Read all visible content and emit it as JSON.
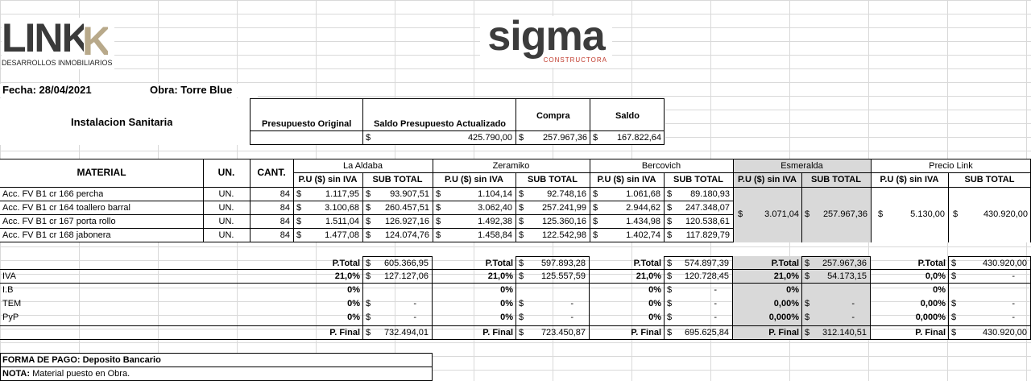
{
  "logos": {
    "link_main": "LINK",
    "link_sub": "DESARROLLOS INMOBILIARIOS",
    "sigma_main": "sigma",
    "sigma_sub": "CONSTRUCTORA"
  },
  "header": {
    "fecha": "Fecha: 28/04/2021",
    "obra": "Obra: Torre Blue"
  },
  "summary": {
    "title": "Instalacion Sanitaria",
    "presupuesto_original_label": "Presupuesto Original",
    "saldo_actualizado_label": "Saldo Presupuesto Actualizado",
    "compra_label": "Compra",
    "saldo_label": "Saldo",
    "currency": "$",
    "saldo_actualizado_value": "425.790,00",
    "compra_value": "257.967,36",
    "saldo_value": "167.822,64"
  },
  "table": {
    "material_label": "MATERIAL",
    "un_label": "UN.",
    "cant_label": "CANT.",
    "pu_label": "P.U ($) sin IVA",
    "sub_label": "SUB TOTAL",
    "suppliers": [
      "La Aldaba",
      "Zeramiko",
      "Bercovich",
      "Esmeralda",
      "Precio Link"
    ],
    "rows": [
      {
        "material": "Acc. FV B1 cr 166 percha",
        "un": "UN.",
        "cant": "84",
        "v": [
          "1.117,95",
          "93.907,51",
          "1.104,14",
          "92.748,16",
          "1.061,68",
          "89.180,93"
        ]
      },
      {
        "material": "Acc. FV B1 cr 164 toallero barral",
        "un": "UN.",
        "cant": "84",
        "v": [
          "3.100,68",
          "260.457,51",
          "3.062,40",
          "257.241,99",
          "2.944,62",
          "247.348,07"
        ]
      },
      {
        "material": "Acc. FV B1 cr 167 porta rollo",
        "un": "UN.",
        "cant": "84",
        "v": [
          "1.511,04",
          "126.927,16",
          "1.492,38",
          "125.360,16",
          "1.434,98",
          "120.538,61"
        ]
      },
      {
        "material": "Acc. FV B1 cr 168 jabonera",
        "un": "UN.",
        "cant": "84",
        "v": [
          "1.477,08",
          "124.074,76",
          "1.458,84",
          "122.542,98",
          "1.402,74",
          "117.829,79"
        ]
      }
    ],
    "esmeralda_merged": [
      "3.071,04",
      "257.967,36"
    ],
    "link_merged": [
      "5.130,00",
      "430.920,00"
    ]
  },
  "totals": {
    "row_labels": [
      "IVA",
      "I.B",
      "TEM",
      "PyP"
    ],
    "ptotal_label": "P.Total",
    "pfinal_label": "P. Final",
    "blocks": [
      {
        "ptotal": "605.366,95",
        "iva_pct": "21,0%",
        "iva": "127.127,06",
        "ib_pct": "0%",
        "ib": "",
        "tem_pct": "0%",
        "tem": "-",
        "pyp_pct": "0%",
        "pyp": "-",
        "pfinal": "732.494,01"
      },
      {
        "ptotal": "597.893,28",
        "iva_pct": "21,0%",
        "iva": "125.557,59",
        "ib_pct": "0%",
        "ib": "",
        "tem_pct": "0%",
        "tem": "-",
        "pyp_pct": "0%",
        "pyp": "-",
        "pfinal": "723.450,87"
      },
      {
        "ptotal": "574.897,39",
        "iva_pct": "21,0%",
        "iva": "120.728,45",
        "ib_pct": "0%",
        "ib": "-",
        "tem_pct": "0%",
        "tem": "-",
        "pyp_pct": "0%",
        "pyp": "-",
        "pfinal": "695.625,84"
      },
      {
        "ptotal": "257.967,36",
        "iva_pct": "21,0%",
        "iva": "54.173,15",
        "ib_pct": "0%",
        "ib": "",
        "tem_pct": "0,00%",
        "tem": "-",
        "pyp_pct": "0,000%",
        "pyp": "-",
        "pfinal": "312.140,51"
      },
      {
        "ptotal": "430.920,00",
        "iva_pct": "0,0%",
        "iva": "-",
        "ib_pct": "0%",
        "ib": "",
        "tem_pct": "0,00%",
        "tem": "-",
        "pyp_pct": "0,000%",
        "pyp": "-",
        "pfinal": "430.920,00"
      }
    ]
  },
  "footer": {
    "forma_pago": "FORMA DE PAGO: Deposito Bancario",
    "nota_label": "NOTA:",
    "nota_text": " Material puesto en Obra."
  }
}
